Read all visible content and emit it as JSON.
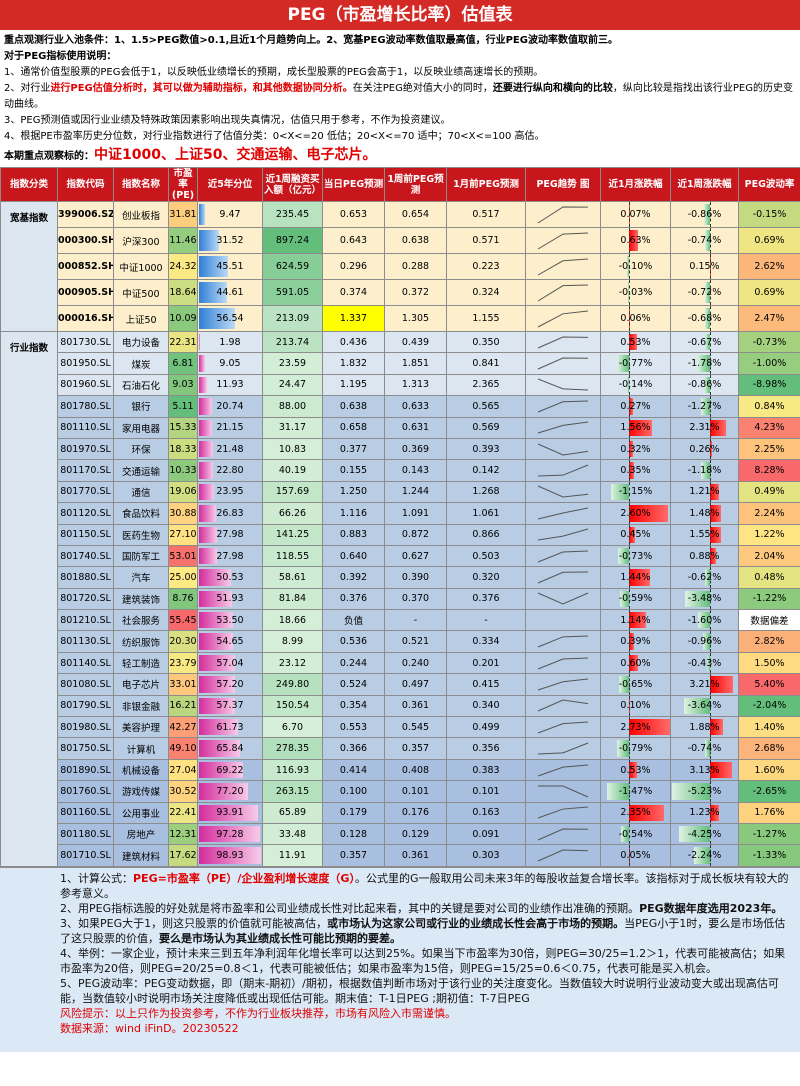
{
  "title": "PEG（市盈增长比率）估值表",
  "intro": {
    "lines": [
      [
        "重点观测行业入池条件：1、1.5>PEG数值>0.1,且近1个月趋势向上。2、宽基PEG波动率数值取最高值，行业PEG波动率数值取前三。"
      ],
      [
        "对于PEG指标使用说明："
      ],
      [
        "1、通常价值型股票的PEG会低于1，以反映低业绩增长的预期，成长型股票的PEG会高于1，以反映业绩高速增长的预期。"
      ],
      [
        "2、对行业",
        "进行PEG估值分析时，其可以做为辅助指标，和其他数据协同分析。",
        "在关注PEG绝对值大小的同时，",
        "还要进行纵向和横向的比较",
        "，纵向比较是指找出该行业PEG的历史变动曲线。"
      ],
      [
        "3、PEG预测值或因行业业绩及特殊政策因素影响出现失真情况，估值只用于参考，不作为投资建议。"
      ],
      [
        "4、根据PE市盈率历史分位数，对行业指数进行了估值分类：0<X<=20 低估；20<X<=70 适中；70<X<=100 高估。"
      ],
      [
        "本期重点观察标的：",
        "中证1000、上证50、交通运输、电子芯片。"
      ]
    ]
  },
  "table": {
    "headers": [
      "指数分类",
      "指数代码",
      "指数名称",
      "市盈率(PE)",
      "近5年分位",
      "近1周融资买入额（亿元）",
      "当日PEG预测",
      "1周前PEG预测",
      "1月前PEG预测",
      "PEG趋势 图",
      "近1月涨跌幅",
      "近1周涨跌幅",
      "PEG波动率"
    ],
    "groups": [
      {
        "label": "宽基指数",
        "rows": [
          [
            "399006.SZ",
            "创业板指",
            "31.81",
            "9.47",
            "235.45",
            "0.653",
            "0.654",
            "0.517",
            "0.07%",
            "-0.86%",
            "-0.15%"
          ],
          [
            "000300.SH",
            "沪深300",
            "11.46",
            "31.52",
            "897.24",
            "0.643",
            "0.638",
            "0.571",
            "0.63%",
            "-0.74%",
            "0.69%"
          ],
          [
            "000852.SH",
            "中证1000",
            "24.32",
            "45.51",
            "624.59",
            "0.296",
            "0.288",
            "0.223",
            "-0.10%",
            "0.15%",
            "2.62%"
          ],
          [
            "000905.SH",
            "中证500",
            "18.64",
            "44.61",
            "591.05",
            "0.374",
            "0.372",
            "0.324",
            "-0.03%",
            "-0.72%",
            "0.69%"
          ],
          [
            "000016.SH",
            "上证50",
            "10.09",
            "56.54",
            "213.09",
            "1.337",
            "1.305",
            "1.155",
            "0.06%",
            "-0.68%",
            "2.47%"
          ]
        ]
      },
      {
        "label": "行业指数",
        "rows": [
          [
            "801730.SL",
            "电力设备",
            "22.31",
            "1.98",
            "213.74",
            "0.436",
            "0.439",
            "0.350",
            "0.53%",
            "-0.67%",
            "-0.73%"
          ],
          [
            "801950.SL",
            "煤炭",
            "6.81",
            "9.05",
            "23.59",
            "1.832",
            "1.851",
            "0.841",
            "-0.77%",
            "-1.78%",
            "-1.00%"
          ],
          [
            "801960.SL",
            "石油石化",
            "9.03",
            "11.93",
            "24.47",
            "1.195",
            "1.313",
            "2.365",
            "-0.14%",
            "-0.86%",
            "-8.98%"
          ],
          [
            "801780.SL",
            "银行",
            "5.11",
            "20.74",
            "88.00",
            "0.638",
            "0.633",
            "0.565",
            "0.27%",
            "-1.27%",
            "0.84%"
          ],
          [
            "801110.SL",
            "家用电器",
            "15.33",
            "21.15",
            "31.17",
            "0.658",
            "0.631",
            "0.569",
            "1.56%",
            "2.31%",
            "4.23%"
          ],
          [
            "801970.SL",
            "环保",
            "18.33",
            "21.48",
            "10.83",
            "0.377",
            "0.369",
            "0.393",
            "0.32%",
            "0.26%",
            "2.25%"
          ],
          [
            "801170.SL",
            "交通运输",
            "10.33",
            "22.80",
            "40.19",
            "0.155",
            "0.143",
            "0.142",
            "0.35%",
            "-1.18%",
            "8.28%"
          ],
          [
            "801770.SL",
            "通信",
            "19.06",
            "23.95",
            "157.69",
            "1.250",
            "1.244",
            "1.268",
            "-1.15%",
            "1.21%",
            "0.49%"
          ],
          [
            "801120.SL",
            "食品饮料",
            "30.88",
            "26.83",
            "66.26",
            "1.116",
            "1.091",
            "1.061",
            "2.60%",
            "1.48%",
            "2.24%"
          ],
          [
            "801150.SL",
            "医药生物",
            "27.10",
            "27.98",
            "141.25",
            "0.883",
            "0.872",
            "0.866",
            "0.45%",
            "1.55%",
            "1.22%"
          ],
          [
            "801740.SL",
            "国防军工",
            "53.01",
            "27.98",
            "118.55",
            "0.640",
            "0.627",
            "0.503",
            "-0.73%",
            "0.88%",
            "2.04%"
          ],
          [
            "801880.SL",
            "汽车",
            "25.00",
            "50.53",
            "58.61",
            "0.392",
            "0.390",
            "0.320",
            "1.44%",
            "-0.62%",
            "0.48%"
          ],
          [
            "801720.SL",
            "建筑装饰",
            "8.76",
            "51.93",
            "81.84",
            "0.376",
            "0.370",
            "0.376",
            "-0.59%",
            "-3.48%",
            "-1.22%"
          ],
          [
            "801210.SL",
            "社会服务",
            "55.45",
            "53.50",
            "18.66",
            "负值",
            "-",
            "-",
            "1.14%",
            "-1.60%",
            "数据偏差"
          ],
          [
            "801130.SL",
            "纺织服饰",
            "20.30",
            "54.65",
            "8.99",
            "0.536",
            "0.521",
            "0.334",
            "0.39%",
            "-0.96%",
            "2.82%"
          ],
          [
            "801140.SL",
            "轻工制造",
            "23.79",
            "57.04",
            "23.12",
            "0.244",
            "0.240",
            "0.201",
            "0.60%",
            "-0.43%",
            "1.50%"
          ],
          [
            "801080.SL",
            "电子芯片",
            "33.01",
            "57.20",
            "249.80",
            "0.524",
            "0.497",
            "0.415",
            "-0.65%",
            "3.21%",
            "5.40%"
          ],
          [
            "801790.SL",
            "非银金融",
            "16.21",
            "57.37",
            "150.54",
            "0.354",
            "0.361",
            "0.340",
            "0.10%",
            "-3.64%",
            "-2.04%"
          ],
          [
            "801980.SL",
            "美容护理",
            "42.27",
            "61.73",
            "6.70",
            "0.553",
            "0.545",
            "0.499",
            "2.73%",
            "1.88%",
            "1.40%"
          ],
          [
            "801750.SL",
            "计算机",
            "49.10",
            "65.84",
            "278.35",
            "0.366",
            "0.357",
            "0.356",
            "-0.79%",
            "-0.74%",
            "2.68%"
          ],
          [
            "801890.SL",
            "机械设备",
            "27.04",
            "69.22",
            "116.93",
            "0.414",
            "0.408",
            "0.383",
            "0.53%",
            "3.13%",
            "1.60%"
          ],
          [
            "801760.SL",
            "游戏传媒",
            "30.52",
            "77.20",
            "263.15",
            "0.100",
            "0.101",
            "0.101",
            "-1.47%",
            "-5.23%",
            "-2.65%"
          ],
          [
            "801160.SL",
            "公用事业",
            "22.41",
            "93.91",
            "65.89",
            "0.179",
            "0.176",
            "0.163",
            "2.35%",
            "1.23%",
            "1.76%"
          ],
          [
            "801180.SL",
            "房地产",
            "12.31",
            "97.28",
            "33.48",
            "0.128",
            "0.129",
            "0.091",
            "-0.54%",
            "-4.25%",
            "-1.27%"
          ],
          [
            "801710.SL",
            "建筑材料",
            "17.62",
            "98.93",
            "11.91",
            "0.357",
            "0.361",
            "0.303",
            "0.05%",
            "-2.24%",
            "-1.33%"
          ]
        ]
      }
    ]
  },
  "notes": {
    "lines": [
      [
        "1、计算公式：",
        "PEG=市盈率（PE）/企业盈利增长速度（G）",
        "。公式里的G一般取用公司未来3年的每股收益复合增长率。该指标对于成长板块有较大的参考意义。"
      ],
      [
        "2、用PEG指标选股的好处就是将市盈率和公司业绩成长性对比起来看，其中的关键是要对公司的业绩作出准确的预期。",
        "PEG数据年度选用2023年。"
      ],
      [
        "3、如果PEG大于1，则这只股票的价值就可能被高估，",
        "或市场认为这家公司或行业的业绩成长性会高于市场的预期。",
        "当PEG小于1时，要么是市场低估了这只股票的价值，",
        "要么是市场认为其业绩成长性可能比预期的要差。"
      ],
      [
        "4、举例：一家企业，预计未来三到五年净利润年化增长率可以达到25%。如果当下市盈率为30倍，则PEG=30/25=1.2＞1，代表可能被高估；如果市盈率为20倍，则PEG=20/25=0.8＜1，代表可能被低估；如果市盈率为15倍，则PEG=15/25=0.6＜0.75，代表可能是买入机会。"
      ],
      [
        "5、PEG波动率：PEG变动数据，即（期末-期初）/期初，根据数值判断市场对于该行业的关注度变化。当数值较大时说明行业波动变大或出现高估可能，当数值较小时说明市场关注度降低或出现低估可能。期末值：T-1日PEG ;期初值：T-7日PEG"
      ],
      [
        "风险提示：以上只作为投资参考，不作为行业板块推荐，市场有风险入市需谨慎。"
      ],
      [
        "数据来源：wind  iFinD。20230522"
      ]
    ]
  }
}
